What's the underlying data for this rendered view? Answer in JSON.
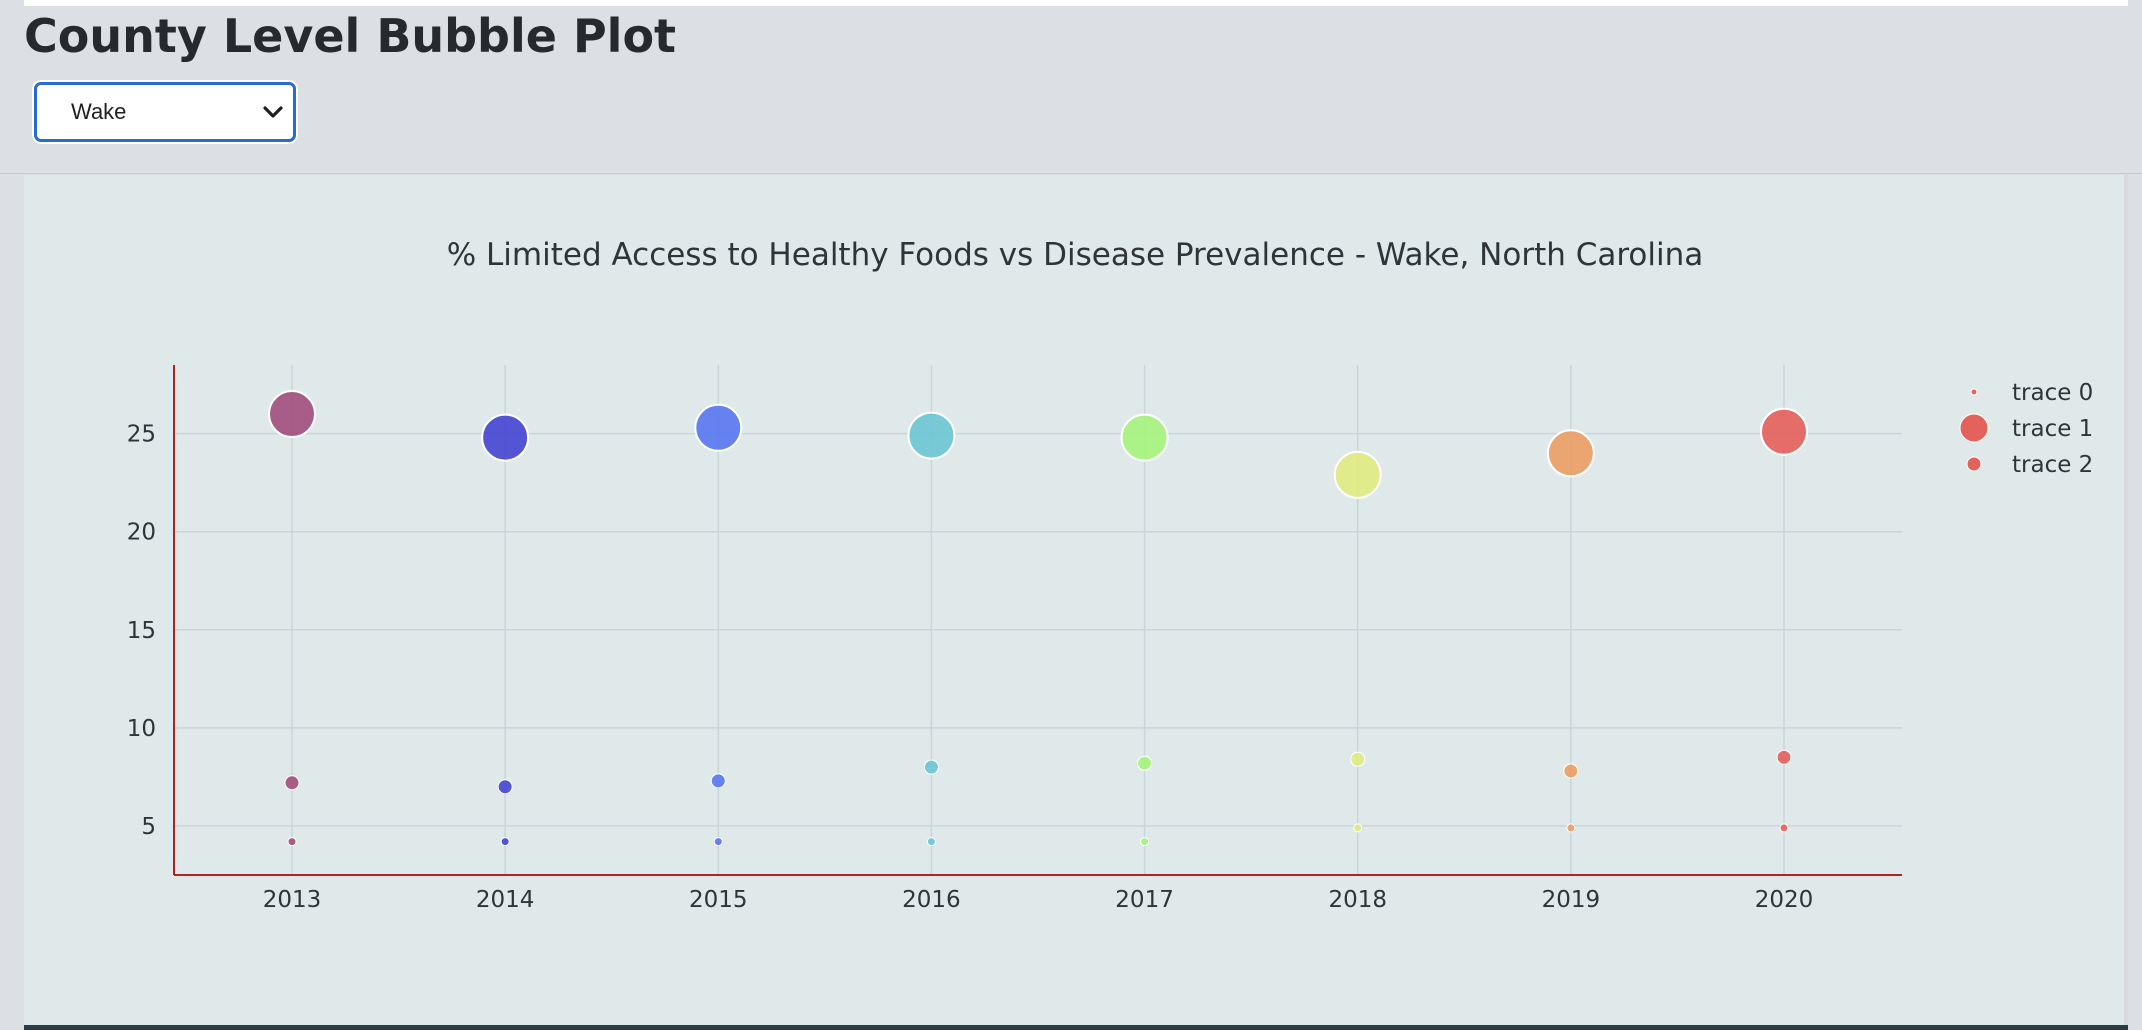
{
  "page": {
    "title": "County Level Bubble Plot"
  },
  "county_select": {
    "selected": "Wake",
    "icon": "chevron-down-icon"
  },
  "colors": {
    "axis_line": "#b22222",
    "grid": "#c9d6d9",
    "panel_bg": "#dfe9ea",
    "select_border": "#2a6cc9"
  },
  "chart_data": {
    "type": "scatter",
    "title": "% Limited Access to Healthy Foods vs Disease Prevalence - Wake, North Carolina",
    "xlabel": "",
    "ylabel": "",
    "categories": [
      "2013",
      "2014",
      "2015",
      "2016",
      "2017",
      "2018",
      "2019",
      "2020"
    ],
    "ylim": [
      2.5,
      28.5
    ],
    "yticks": [
      5,
      10,
      15,
      20,
      25
    ],
    "point_colors": [
      "#a2507e",
      "#4648d2",
      "#5a78f0",
      "#6ec6d4",
      "#a6f27e",
      "#e0ea82",
      "#ec9e66",
      "#e4625c"
    ],
    "legend_position": "top-right",
    "series": [
      {
        "name": "trace 0",
        "values": [
          4.2,
          4.2,
          4.2,
          4.2,
          4.2,
          4.9,
          4.9,
          4.9
        ],
        "bubble_size": "small"
      },
      {
        "name": "trace 1",
        "values": [
          26.0,
          24.8,
          25.3,
          24.9,
          24.8,
          22.9,
          24.0,
          25.1
        ],
        "bubble_size": "large"
      },
      {
        "name": "trace 2",
        "values": [
          7.2,
          7.0,
          7.3,
          8.0,
          8.2,
          8.4,
          7.8,
          8.5
        ],
        "bubble_size": "medium"
      }
    ],
    "legend": [
      "trace 0",
      "trace 1",
      "trace 2"
    ]
  }
}
